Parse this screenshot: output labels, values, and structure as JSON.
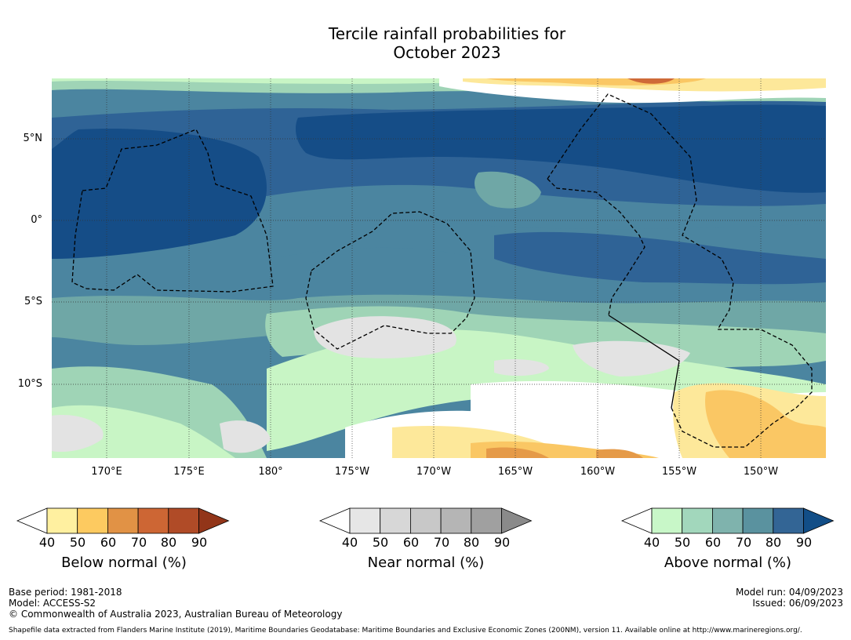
{
  "title": {
    "line1": "Tercile rainfall probabilities for",
    "line2": "October 2023"
  },
  "map": {
    "lat_labels": [
      "5°N",
      "0°",
      "5°S",
      "10°S"
    ],
    "lon_labels": [
      "170°E",
      "175°E",
      "180°",
      "175°W",
      "170°W",
      "165°W",
      "160°W",
      "155°W",
      "150°W"
    ],
    "colors": {
      "white": "#ffffff",
      "green40": "#c8f5c5",
      "green50": "#9fd4b6",
      "teal60": "#6fa7a6",
      "teal70": "#4b85a0",
      "blue80": "#2f6396",
      "blue90": "#154d87",
      "gray40": "#e3e3e3",
      "yellow40": "#fde89a",
      "orange50": "#fac764",
      "orange60": "#e59a48",
      "red70": "#cf6a38"
    }
  },
  "colorbars": [
    {
      "label": "Below normal (%)",
      "ticks": [
        "40",
        "50",
        "60",
        "70",
        "80",
        "90"
      ],
      "colors": [
        "#fff0a0",
        "#fdca60",
        "#e19245",
        "#cd6634",
        "#b04b27",
        "#923519"
      ]
    },
    {
      "label": "Near normal (%)",
      "ticks": [
        "40",
        "50",
        "60",
        "70",
        "80",
        "90"
      ],
      "colors": [
        "#e6e6e6",
        "#d7d7d7",
        "#c8c8c8",
        "#b5b5b5",
        "#a0a0a0",
        "#8a8a8a"
      ]
    },
    {
      "label": "Above normal (%)",
      "ticks": [
        "40",
        "50",
        "60",
        "70",
        "80",
        "90"
      ],
      "colors": [
        "#c8f7c8",
        "#a2d7bc",
        "#7fb3ad",
        "#5a929f",
        "#336595",
        "#124e87"
      ]
    }
  ],
  "footer": {
    "base_period": "Base period: 1981-2018",
    "model": "Model: ACCESS-S2",
    "copyright": "© Commonwealth of Australia 2023, Australian Bureau of Meteorology",
    "model_run": "Model run: 04/09/2023",
    "issued": "Issued: 06/09/2023",
    "shapefile": "Shapefile data extracted from Flanders Marine Institute (2019), Maritime Boundaries Geodatabase: Maritime Boundaries and Exclusive Economic Zones (200NM), version 11. Available online at http://www.marineregions.org/."
  }
}
